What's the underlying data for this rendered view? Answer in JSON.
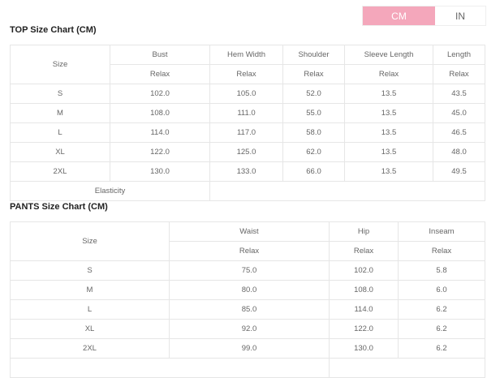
{
  "unit_toggle": {
    "options": [
      "CM",
      "IN"
    ],
    "selected": "CM",
    "accent": "#f4a7bb"
  },
  "top": {
    "title": "TOP Size Chart (CM)",
    "size_header": "Size",
    "columns": [
      "Bust",
      "Hem Width",
      "Shoulder",
      "Sleeve Length",
      "Length"
    ],
    "sub_label": "Relax",
    "rows": [
      [
        "S",
        "102.0",
        "105.0",
        "52.0",
        "13.5",
        "43.5"
      ],
      [
        "M",
        "108.0",
        "111.0",
        "55.0",
        "13.5",
        "45.0"
      ],
      [
        "L",
        "114.0",
        "117.0",
        "58.0",
        "13.5",
        "46.5"
      ],
      [
        "XL",
        "122.0",
        "125.0",
        "62.0",
        "13.5",
        "48.0"
      ],
      [
        "2XL",
        "130.0",
        "133.0",
        "66.0",
        "13.5",
        "49.5"
      ]
    ],
    "elasticity_label": "Elasticity"
  },
  "pants": {
    "title": "PANTS Size Chart (CM)",
    "size_header": "Size",
    "columns": [
      "Waist",
      "Hip",
      "Inseam"
    ],
    "sub_label": "Relax",
    "rows": [
      [
        "S",
        "75.0",
        "102.0",
        "5.8"
      ],
      [
        "M",
        "80.0",
        "108.0",
        "6.0"
      ],
      [
        "L",
        "85.0",
        "114.0",
        "6.2"
      ],
      [
        "XL",
        "92.0",
        "122.0",
        "6.2"
      ],
      [
        "2XL",
        "99.0",
        "130.0",
        "6.2"
      ]
    ]
  }
}
